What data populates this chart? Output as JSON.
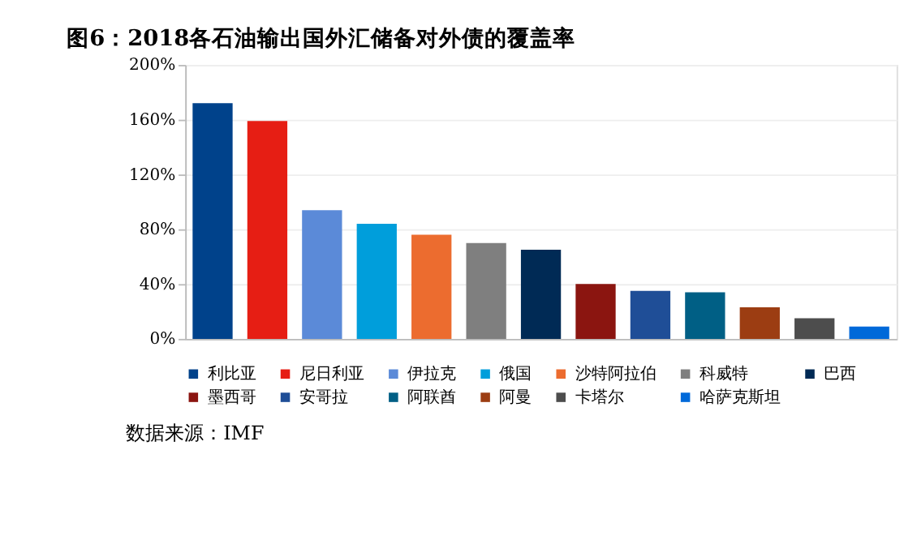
{
  "chart_data": {
    "type": "bar",
    "title": "图6：2018各石油输出国外汇储备对外债的覆盖率",
    "categories": [
      null,
      null,
      null,
      null,
      null,
      null,
      null,
      null,
      null,
      null,
      null,
      null,
      null
    ],
    "stacked": true,
    "series": [
      {
        "name": "利比亚",
        "color": "#00428b",
        "values": [
          172,
          null,
          null,
          null,
          null,
          null,
          null,
          null,
          null,
          null,
          null,
          null,
          null
        ]
      },
      {
        "name": "尼日利亚",
        "color": "#e61e14",
        "values": [
          null,
          159,
          null,
          null,
          null,
          null,
          null,
          null,
          null,
          null,
          null,
          null,
          null
        ]
      },
      {
        "name": "伊拉克",
        "color": "#5b8ad8",
        "values": [
          null,
          null,
          94,
          null,
          null,
          null,
          null,
          null,
          null,
          null,
          null,
          null,
          null
        ]
      },
      {
        "name": "俄国",
        "color": "#009edb",
        "values": [
          null,
          null,
          null,
          84,
          null,
          null,
          null,
          null,
          null,
          null,
          null,
          null,
          null
        ]
      },
      {
        "name": "沙特阿拉伯",
        "color": "#ec6c2f",
        "values": [
          null,
          null,
          null,
          null,
          76,
          null,
          null,
          null,
          null,
          null,
          null,
          null,
          null
        ]
      },
      {
        "name": "科威特",
        "color": "#7f7f7f",
        "values": [
          null,
          null,
          null,
          null,
          null,
          70,
          null,
          null,
          null,
          null,
          null,
          null,
          null
        ]
      },
      {
        "name": "巴西",
        "color": "#002a55",
        "values": [
          null,
          null,
          null,
          null,
          null,
          null,
          65,
          null,
          null,
          null,
          null,
          null,
          null
        ]
      },
      {
        "name": "墨西哥",
        "color": "#8b1510",
        "values": [
          null,
          null,
          null,
          null,
          null,
          null,
          null,
          40,
          null,
          null,
          null,
          null,
          null
        ]
      },
      {
        "name": "安哥拉",
        "color": "#1f4e97",
        "values": [
          null,
          null,
          null,
          null,
          null,
          null,
          null,
          null,
          35,
          null,
          null,
          null,
          null
        ]
      },
      {
        "name": "阿联酋",
        "color": "#005f85",
        "values": [
          null,
          null,
          null,
          null,
          null,
          null,
          null,
          null,
          null,
          34,
          null,
          null,
          null
        ]
      },
      {
        "name": "阿曼",
        "color": "#9c3d12",
        "values": [
          null,
          null,
          null,
          null,
          null,
          null,
          null,
          null,
          null,
          null,
          23,
          null,
          null
        ]
      },
      {
        "name": "卡塔尔",
        "color": "#4d4d4d",
        "values": [
          null,
          null,
          null,
          null,
          null,
          null,
          null,
          null,
          null,
          null,
          null,
          15,
          null
        ]
      },
      {
        "name": "哈萨克斯坦",
        "color": "#0069d9",
        "values": [
          null,
          null,
          null,
          null,
          null,
          null,
          null,
          null,
          null,
          null,
          null,
          null,
          9
        ]
      }
    ],
    "ylim": [
      0,
      200
    ],
    "yticks": [
      {
        "value": 0,
        "label": "0%"
      },
      {
        "value": 40,
        "label": "40%"
      },
      {
        "value": 80,
        "label": "80%"
      },
      {
        "value": 120,
        "label": "120%"
      },
      {
        "value": 160,
        "label": "160%"
      },
      {
        "value": 200,
        "label": "200%"
      }
    ],
    "grid": "y",
    "legend": "bottom",
    "tick_labels": "y",
    "annotations": [
      "数据来源：IMF"
    ]
  }
}
